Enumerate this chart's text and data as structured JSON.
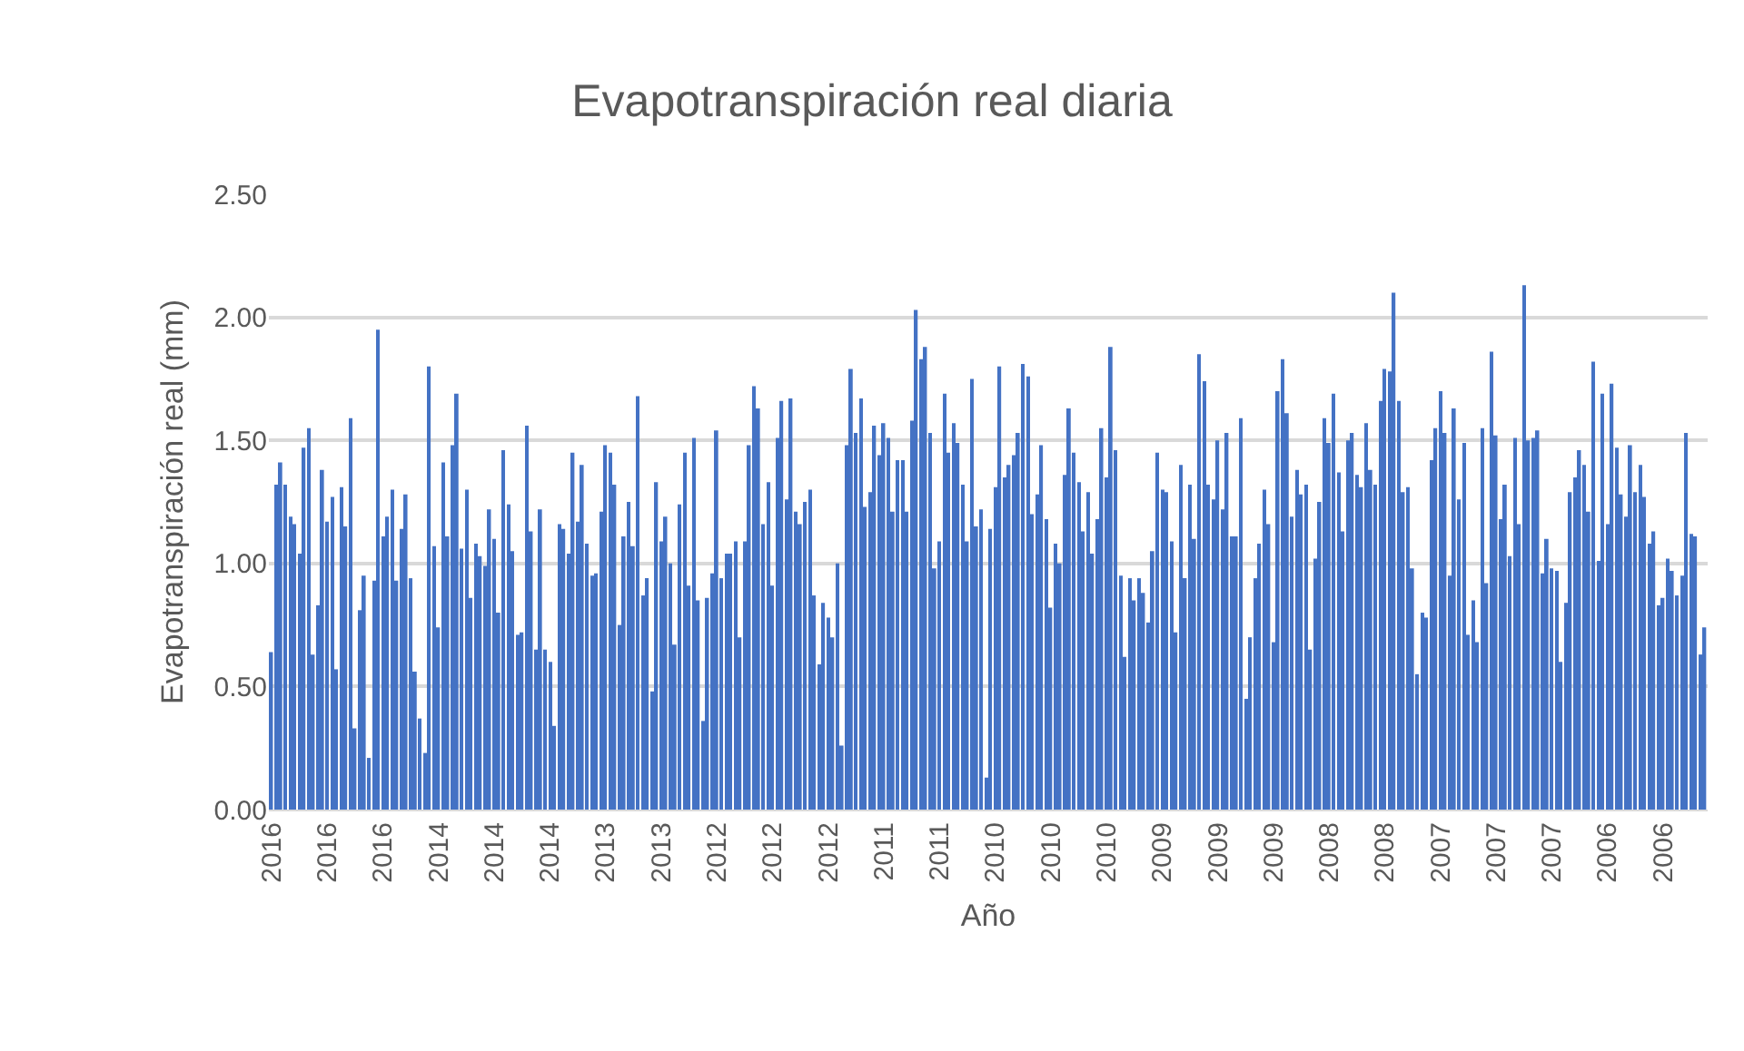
{
  "chart_data": {
    "type": "bar",
    "title": "Evapotranspiración real diaria",
    "xlabel": "Año",
    "ylabel": "Evapotranspiración real (mm)",
    "color": "#4472c4",
    "grid": "y",
    "categories": [
      "2016",
      null,
      null,
      null,
      null,
      null,
      null,
      null,
      null,
      null,
      null,
      null,
      "2016",
      null,
      null,
      null,
      null,
      null,
      null,
      null,
      null,
      null,
      null,
      null,
      "2016",
      null,
      null,
      null,
      null,
      null,
      null,
      null,
      null,
      null,
      null,
      null,
      "2014",
      null,
      null,
      null,
      null,
      null,
      null,
      null,
      null,
      null,
      null,
      null,
      "2014",
      null,
      null,
      null,
      null,
      null,
      null,
      null,
      null,
      null,
      null,
      null,
      "2014",
      null,
      null,
      null,
      null,
      null,
      null,
      null,
      null,
      null,
      null,
      null,
      "2013",
      null,
      null,
      null,
      null,
      null,
      null,
      null,
      null,
      null,
      null,
      null,
      "2013",
      null,
      null,
      null,
      null,
      null,
      null,
      null,
      null,
      null,
      null,
      null,
      "2012",
      null,
      null,
      null,
      null,
      null,
      null,
      null,
      null,
      null,
      null,
      null,
      "2012",
      null,
      null,
      null,
      null,
      null,
      null,
      null,
      null,
      null,
      null,
      null,
      "2012",
      null,
      null,
      null,
      null,
      null,
      null,
      null,
      null,
      null,
      null,
      null,
      "2011",
      null,
      null,
      null,
      null,
      null,
      null,
      null,
      null,
      null,
      null,
      null,
      "2011",
      null,
      null,
      null,
      null,
      null,
      null,
      null,
      null,
      null,
      null,
      null,
      "2010",
      null,
      null,
      null,
      null,
      null,
      null,
      null,
      null,
      null,
      null,
      null,
      "2010",
      null,
      null,
      null,
      null,
      null,
      null,
      null,
      null,
      null,
      null,
      null,
      "2010",
      null,
      null,
      null,
      null,
      null,
      null,
      null,
      null,
      null,
      null,
      null,
      "2009",
      null,
      null,
      null,
      null,
      null,
      null,
      null,
      null,
      null,
      null,
      null,
      "2009",
      null,
      null,
      null,
      null,
      null,
      null,
      null,
      null,
      null,
      null,
      null,
      "2009",
      null,
      null,
      null,
      null,
      null,
      null,
      null,
      null,
      null,
      null,
      null,
      "2008",
      null,
      null,
      null,
      null,
      null,
      null,
      null,
      null,
      null,
      null,
      null,
      "2008",
      null,
      null,
      null,
      null,
      null,
      null,
      null,
      null,
      null,
      null,
      null,
      "2007",
      null,
      null,
      null,
      null,
      null,
      null,
      null,
      null,
      null,
      null,
      null,
      "2007",
      null,
      null,
      null,
      null,
      null,
      null,
      null,
      null,
      null,
      null,
      null,
      "2007",
      null,
      null,
      null,
      null,
      null,
      null,
      null,
      null,
      null,
      null,
      null,
      "2006",
      null,
      null,
      null,
      null,
      null,
      null,
      null,
      null,
      null,
      null,
      null,
      "2006",
      null,
      null,
      null,
      null,
      null,
      null,
      null,
      null,
      null
    ],
    "values": [
      0.64,
      1.32,
      1.41,
      1.32,
      1.19,
      1.16,
      1.04,
      1.47,
      1.55,
      0.63,
      0.83,
      1.38,
      1.17,
      1.27,
      0.57,
      1.31,
      1.15,
      1.59,
      0.33,
      0.81,
      0.95,
      0.21,
      0.93,
      1.95,
      1.11,
      1.19,
      1.3,
      0.93,
      1.14,
      1.28,
      0.94,
      0.56,
      0.37,
      0.23,
      1.8,
      1.07,
      0.74,
      1.41,
      1.11,
      1.48,
      1.69,
      1.06,
      1.3,
      0.86,
      1.08,
      1.03,
      0.99,
      1.22,
      1.1,
      0.8,
      1.46,
      1.24,
      1.05,
      0.71,
      0.72,
      1.56,
      1.13,
      0.65,
      1.22,
      0.65,
      0.6,
      0.34,
      1.16,
      1.14,
      1.04,
      1.45,
      1.17,
      1.4,
      1.08,
      0.95,
      0.96,
      1.21,
      1.48,
      1.45,
      1.32,
      0.75,
      1.11,
      1.25,
      1.07,
      1.68,
      0.87,
      0.94,
      0.48,
      1.33,
      1.09,
      1.19,
      1.0,
      0.67,
      1.24,
      1.45,
      0.91,
      1.51,
      0.85,
      0.36,
      0.86,
      0.96,
      1.54,
      0.94,
      1.04,
      1.04,
      1.09,
      0.7,
      1.09,
      1.48,
      1.72,
      1.63,
      1.16,
      1.33,
      0.91,
      1.51,
      1.66,
      1.26,
      1.67,
      1.21,
      1.16,
      1.25,
      1.3,
      0.87,
      0.59,
      0.84,
      0.78,
      0.7,
      1.0,
      0.26,
      1.48,
      1.79,
      1.53,
      1.67,
      1.23,
      1.29,
      1.56,
      1.44,
      1.57,
      1.51,
      1.21,
      1.42,
      1.42,
      1.21,
      1.58,
      2.03,
      1.83,
      1.88,
      1.53,
      0.98,
      1.09,
      1.69,
      1.45,
      1.57,
      1.49,
      1.32,
      1.09,
      1.75,
      1.15,
      1.22,
      0.13,
      1.14,
      1.31,
      1.8,
      1.35,
      1.4,
      1.44,
      1.53,
      1.81,
      1.76,
      1.2,
      1.28,
      1.48,
      1.18,
      0.82,
      1.08,
      1.0,
      1.36,
      1.63,
      1.45,
      1.33,
      1.13,
      1.29,
      1.04,
      1.18,
      1.55,
      1.35,
      1.88,
      1.46,
      0.95,
      0.62,
      0.94,
      0.85,
      0.94,
      0.88,
      0.76,
      1.05,
      1.45,
      1.3,
      1.29,
      1.09,
      0.72,
      1.4,
      0.94,
      1.32,
      1.1,
      1.85,
      1.74,
      1.32,
      1.26,
      1.5,
      1.22,
      1.53,
      1.11,
      1.11,
      1.59,
      0.45,
      0.7,
      0.94,
      1.08,
      1.3,
      1.16,
      0.68,
      1.7,
      1.83,
      1.61,
      1.19,
      1.38,
      1.28,
      1.32,
      0.65,
      1.02,
      1.25,
      1.59,
      1.49,
      1.69,
      1.37,
      1.13,
      1.5,
      1.53,
      1.36,
      1.31,
      1.57,
      1.38,
      1.32,
      1.66,
      1.79,
      1.78,
      2.1,
      1.66,
      1.29,
      1.31,
      0.98,
      0.55,
      0.8,
      0.78,
      1.42,
      1.55,
      1.7,
      1.53,
      0.95,
      1.63,
      1.26,
      1.49,
      0.71,
      0.85,
      0.68,
      1.55,
      0.92,
      1.86,
      1.52,
      1.18,
      1.32,
      1.03,
      1.51,
      1.16,
      2.13,
      1.5,
      1.51,
      1.54,
      0.96,
      1.1,
      0.98,
      0.97,
      0.6,
      0.84,
      1.29,
      1.35,
      1.46,
      1.4,
      1.21,
      1.82,
      1.01,
      1.69,
      1.16,
      1.73,
      1.47,
      1.28,
      1.19,
      1.48,
      1.29,
      1.4,
      1.27,
      1.08,
      1.13,
      0.83,
      0.86,
      1.02,
      0.97,
      0.87,
      0.95,
      1.53,
      1.12,
      1.11,
      0.63,
      0.74
    ],
    "ylim": [
      0,
      2.5
    ],
    "yticks": [
      {
        "value": 0,
        "label": "0.00"
      },
      {
        "value": 0.5,
        "label": "0.50"
      },
      {
        "value": 1,
        "label": "1.00"
      },
      {
        "value": 1.5,
        "label": "1.50"
      },
      {
        "value": 2,
        "label": "2.00"
      },
      {
        "value": 2.5,
        "label": "2.50"
      }
    ]
  }
}
